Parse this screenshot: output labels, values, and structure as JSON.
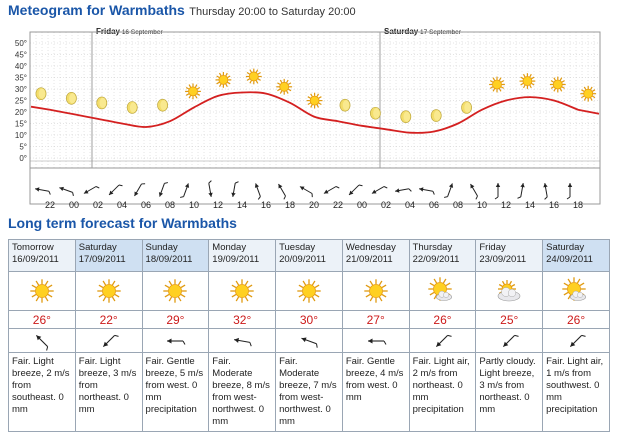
{
  "header": {
    "title": "Meteogram for Warmbaths",
    "period": "Thursday 20:00 to Saturday 20:00"
  },
  "colors": {
    "title": "#1a56a8",
    "temperature_line": "#d42020",
    "grid": "#c8c8c8",
    "weekend_header": "#cfe0f2",
    "weekday_header": "#ecf2f8",
    "temperature_text": "#cc1a1a"
  },
  "chart_data": {
    "type": "line",
    "day_labels": [
      {
        "day": "Friday",
        "date": "16 September",
        "index": 2
      },
      {
        "day": "Saturday",
        "date": "17 September",
        "index": 14
      }
    ],
    "x": [
      "22",
      "00",
      "02",
      "04",
      "06",
      "08",
      "10",
      "12",
      "14",
      "16",
      "18",
      "20",
      "22",
      "00",
      "02",
      "04",
      "06",
      "08",
      "10",
      "12",
      "14",
      "16",
      "18"
    ],
    "series": [
      {
        "values": [
          21,
          19,
          17,
          15,
          13.5,
          16,
          22,
          27,
          28.5,
          28,
          24,
          18,
          16,
          14,
          12.5,
          11,
          11.5,
          15,
          21,
          25,
          26.5,
          25,
          21
        ]
      }
    ],
    "symbols": [
      {
        "hour": "22",
        "icon": "moon"
      },
      {
        "hour": "00",
        "icon": "moon"
      },
      {
        "hour": "02",
        "icon": "moon"
      },
      {
        "hour": "04",
        "icon": "moon"
      },
      {
        "hour": "06",
        "icon": "moon"
      },
      {
        "hour": "08",
        "icon": "sun"
      },
      {
        "hour": "10",
        "icon": "sun"
      },
      {
        "hour": "12",
        "icon": "sun"
      },
      {
        "hour": "14",
        "icon": "sun"
      },
      {
        "hour": "16",
        "icon": "sun"
      },
      {
        "hour": "18",
        "icon": "moon"
      },
      {
        "hour": "20",
        "icon": "moon"
      },
      {
        "hour": "22",
        "icon": "moon"
      },
      {
        "hour": "00",
        "icon": "moon"
      },
      {
        "hour": "02",
        "icon": "moon"
      },
      {
        "hour": "04",
        "icon": "sun"
      },
      {
        "hour": "06",
        "icon": "sun"
      },
      {
        "hour": "08",
        "icon": "sun"
      },
      {
        "hour": "10",
        "icon": "sun"
      }
    ],
    "wind_direction_deg": [
      100,
      110,
      60,
      45,
      30,
      20,
      200,
      350,
      10,
      160,
      150,
      120,
      60,
      45,
      60,
      80,
      100,
      200,
      150,
      180,
      190,
      170,
      180
    ],
    "y_ticks": [
      "50°",
      "45°",
      "40°",
      "35°",
      "30°",
      "25°",
      "20°",
      "15°",
      "10°",
      "5°",
      "0°"
    ],
    "ylim": [
      0,
      50
    ],
    "grid": true
  },
  "long_term": {
    "title": "Long term forecast for Warmbaths",
    "days": [
      {
        "name": "Tomorrow",
        "date": "16/09/2011",
        "icon": "sun",
        "temp": "26°",
        "wind_deg": 135,
        "text": "Fair. Light breeze, 2 m/s from southeast. 0 mm",
        "weekend": false
      },
      {
        "name": "Saturday",
        "date": "17/09/2011",
        "icon": "sun",
        "temp": "22°",
        "wind_deg": 45,
        "text": "Fair. Light breeze, 3 m/s from northeast. 0 mm",
        "weekend": true
      },
      {
        "name": "Sunday",
        "date": "18/09/2011",
        "icon": "sun",
        "temp": "29°",
        "wind_deg": 90,
        "text": "Fair. Gentle breeze, 5 m/s from west. 0 mm precipitation",
        "weekend": true
      },
      {
        "name": "Monday",
        "date": "19/09/2011",
        "icon": "sun",
        "temp": "32°",
        "wind_deg": 100,
        "text": "Fair. Moderate breeze, 8 m/s from west-northwest. 0 mm",
        "weekend": false
      },
      {
        "name": "Tuesday",
        "date": "20/09/2011",
        "icon": "sun",
        "temp": "30°",
        "wind_deg": 110,
        "text": "Fair. Moderate breeze, 7 m/s from west-northwest. 0 mm",
        "weekend": false
      },
      {
        "name": "Wednesday",
        "date": "21/09/2011",
        "icon": "sun",
        "temp": "27°",
        "wind_deg": 90,
        "text": "Fair. Gentle breeze, 4 m/s from west. 0 mm",
        "weekend": false
      },
      {
        "name": "Thursday",
        "date": "22/09/2011",
        "icon": "sun-cloud",
        "temp": "26°",
        "wind_deg": 45,
        "text": "Fair. Light air, 2 m/s from northeast. 0 mm precipitation",
        "weekend": false
      },
      {
        "name": "Friday",
        "date": "23/09/2011",
        "icon": "cloud-sun",
        "temp": "25°",
        "wind_deg": 45,
        "text": "Partly cloudy. Light breeze, 3 m/s from northeast. 0 mm",
        "weekend": false
      },
      {
        "name": "Saturday",
        "date": "24/09/2011",
        "icon": "sun-cloud",
        "temp": "26°",
        "wind_deg": 45,
        "text": "Fair. Light air, 1 m/s from southwest. 0 mm precipitation",
        "weekend": true
      }
    ]
  }
}
